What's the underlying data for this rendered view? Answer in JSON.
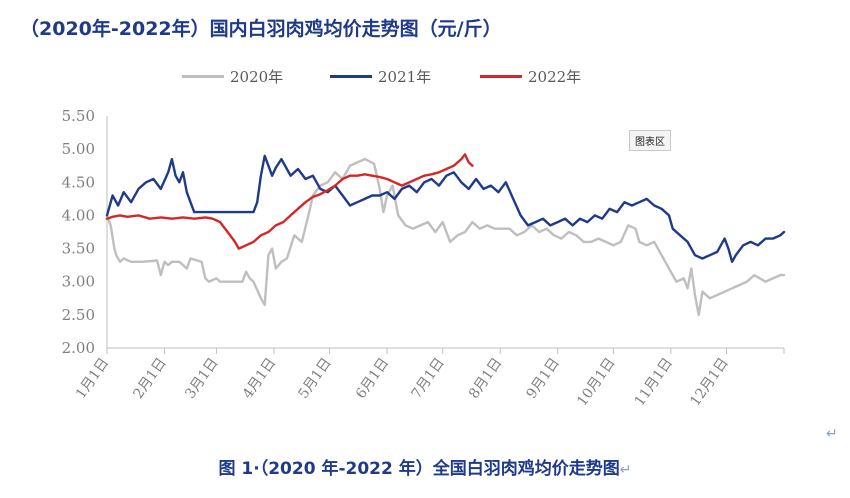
{
  "chart_data": {
    "type": "line",
    "title": "（2020年-2022年）国内白羽肉鸡均价走势图（元/斤）",
    "unit": "元/斤",
    "xlabel": "",
    "ylabel": "",
    "ylim": [
      2.0,
      5.5
    ],
    "yticks": [
      "5.50",
      "5.00",
      "4.50",
      "4.00",
      "3.50",
      "3.00",
      "2.50",
      "2.00"
    ],
    "x_tick_labels": [
      "1月1日",
      "2月1日",
      "3月1日",
      "4月1日",
      "5月1日",
      "6月1日",
      "7月1日",
      "8月1日",
      "9月1日",
      "10月1日",
      "11月1日",
      "12月1日"
    ],
    "x_unit": "day of year",
    "xlim": [
      1,
      366
    ],
    "legend_position": "top",
    "grid": false,
    "series": [
      {
        "name": "2020年",
        "color": "#bfbfbf",
        "points": [
          [
            1,
            4.0
          ],
          [
            3,
            3.85
          ],
          [
            5,
            3.5
          ],
          [
            6,
            3.4
          ],
          [
            8,
            3.3
          ],
          [
            10,
            3.35
          ],
          [
            14,
            3.3
          ],
          [
            20,
            3.3
          ],
          [
            28,
            3.32
          ],
          [
            30,
            3.1
          ],
          [
            32,
            3.3
          ],
          [
            34,
            3.25
          ],
          [
            36,
            3.3
          ],
          [
            40,
            3.3
          ],
          [
            44,
            3.2
          ],
          [
            46,
            3.35
          ],
          [
            52,
            3.3
          ],
          [
            54,
            3.05
          ],
          [
            56,
            3.0
          ],
          [
            60,
            3.05
          ],
          [
            62,
            3.0
          ],
          [
            70,
            3.0
          ],
          [
            74,
            3.0
          ],
          [
            76,
            3.15
          ],
          [
            78,
            3.05
          ],
          [
            80,
            3.0
          ],
          [
            84,
            2.75
          ],
          [
            86,
            2.65
          ],
          [
            88,
            3.4
          ],
          [
            90,
            3.5
          ],
          [
            92,
            3.2
          ],
          [
            95,
            3.3
          ],
          [
            98,
            3.35
          ],
          [
            102,
            3.7
          ],
          [
            106,
            3.6
          ],
          [
            110,
            4.05
          ],
          [
            112,
            4.3
          ],
          [
            116,
            4.45
          ],
          [
            120,
            4.5
          ],
          [
            124,
            4.65
          ],
          [
            128,
            4.55
          ],
          [
            132,
            4.75
          ],
          [
            136,
            4.8
          ],
          [
            140,
            4.85
          ],
          [
            145,
            4.78
          ],
          [
            148,
            4.4
          ],
          [
            150,
            4.05
          ],
          [
            152,
            4.3
          ],
          [
            155,
            4.45
          ],
          [
            158,
            4.0
          ],
          [
            162,
            3.85
          ],
          [
            166,
            3.8
          ],
          [
            170,
            3.85
          ],
          [
            174,
            3.9
          ],
          [
            178,
            3.75
          ],
          [
            182,
            3.9
          ],
          [
            186,
            3.6
          ],
          [
            190,
            3.7
          ],
          [
            194,
            3.75
          ],
          [
            198,
            3.9
          ],
          [
            202,
            3.8
          ],
          [
            206,
            3.85
          ],
          [
            210,
            3.8
          ],
          [
            214,
            3.8
          ],
          [
            218,
            3.8
          ],
          [
            222,
            3.7
          ],
          [
            226,
            3.75
          ],
          [
            230,
            3.85
          ],
          [
            234,
            3.75
          ],
          [
            238,
            3.8
          ],
          [
            242,
            3.7
          ],
          [
            246,
            3.65
          ],
          [
            250,
            3.75
          ],
          [
            254,
            3.7
          ],
          [
            258,
            3.6
          ],
          [
            262,
            3.6
          ],
          [
            266,
            3.65
          ],
          [
            270,
            3.6
          ],
          [
            274,
            3.55
          ],
          [
            278,
            3.6
          ],
          [
            282,
            3.85
          ],
          [
            286,
            3.8
          ],
          [
            288,
            3.6
          ],
          [
            292,
            3.55
          ],
          [
            296,
            3.6
          ],
          [
            300,
            3.4
          ],
          [
            304,
            3.2
          ],
          [
            308,
            3.0
          ],
          [
            312,
            3.05
          ],
          [
            314,
            2.9
          ],
          [
            316,
            3.2
          ],
          [
            318,
            2.8
          ],
          [
            320,
            2.5
          ],
          [
            322,
            2.85
          ],
          [
            326,
            2.75
          ],
          [
            330,
            2.8
          ],
          [
            334,
            2.85
          ],
          [
            338,
            2.9
          ],
          [
            342,
            2.95
          ],
          [
            346,
            3.0
          ],
          [
            350,
            3.1
          ],
          [
            356,
            3.0
          ],
          [
            360,
            3.05
          ],
          [
            364,
            3.1
          ],
          [
            366,
            3.1
          ]
        ]
      },
      {
        "name": "2021年",
        "color": "#1f3a8a",
        "points": [
          [
            1,
            4.0
          ],
          [
            4,
            4.3
          ],
          [
            7,
            4.15
          ],
          [
            10,
            4.35
          ],
          [
            14,
            4.2
          ],
          [
            18,
            4.4
          ],
          [
            22,
            4.5
          ],
          [
            26,
            4.55
          ],
          [
            30,
            4.4
          ],
          [
            34,
            4.65
          ],
          [
            36,
            4.85
          ],
          [
            38,
            4.6
          ],
          [
            40,
            4.5
          ],
          [
            42,
            4.65
          ],
          [
            44,
            4.35
          ],
          [
            46,
            4.2
          ],
          [
            48,
            4.05
          ],
          [
            52,
            4.05
          ],
          [
            60,
            4.05
          ],
          [
            70,
            4.05
          ],
          [
            75,
            4.05
          ],
          [
            80,
            4.05
          ],
          [
            82,
            4.2
          ],
          [
            84,
            4.6
          ],
          [
            86,
            4.9
          ],
          [
            88,
            4.75
          ],
          [
            90,
            4.6
          ],
          [
            92,
            4.72
          ],
          [
            95,
            4.85
          ],
          [
            98,
            4.7
          ],
          [
            100,
            4.6
          ],
          [
            104,
            4.7
          ],
          [
            108,
            4.55
          ],
          [
            112,
            4.6
          ],
          [
            116,
            4.4
          ],
          [
            120,
            4.35
          ],
          [
            124,
            4.45
          ],
          [
            128,
            4.3
          ],
          [
            132,
            4.15
          ],
          [
            136,
            4.2
          ],
          [
            140,
            4.25
          ],
          [
            144,
            4.3
          ],
          [
            148,
            4.3
          ],
          [
            152,
            4.35
          ],
          [
            156,
            4.25
          ],
          [
            160,
            4.4
          ],
          [
            164,
            4.45
          ],
          [
            168,
            4.35
          ],
          [
            172,
            4.5
          ],
          [
            176,
            4.55
          ],
          [
            180,
            4.45
          ],
          [
            184,
            4.6
          ],
          [
            188,
            4.65
          ],
          [
            192,
            4.5
          ],
          [
            196,
            4.4
          ],
          [
            200,
            4.55
          ],
          [
            204,
            4.4
          ],
          [
            208,
            4.45
          ],
          [
            212,
            4.35
          ],
          [
            216,
            4.5
          ],
          [
            220,
            4.25
          ],
          [
            224,
            4.0
          ],
          [
            228,
            3.85
          ],
          [
            232,
            3.9
          ],
          [
            236,
            3.95
          ],
          [
            240,
            3.85
          ],
          [
            244,
            3.9
          ],
          [
            248,
            3.95
          ],
          [
            252,
            3.85
          ],
          [
            256,
            3.95
          ],
          [
            260,
            3.9
          ],
          [
            264,
            4.0
          ],
          [
            268,
            3.95
          ],
          [
            272,
            4.1
          ],
          [
            276,
            4.05
          ],
          [
            280,
            4.2
          ],
          [
            284,
            4.15
          ],
          [
            288,
            4.2
          ],
          [
            292,
            4.25
          ],
          [
            296,
            4.15
          ],
          [
            300,
            4.1
          ],
          [
            304,
            4.0
          ],
          [
            306,
            3.8
          ],
          [
            310,
            3.7
          ],
          [
            314,
            3.6
          ],
          [
            318,
            3.4
          ],
          [
            322,
            3.35
          ],
          [
            326,
            3.4
          ],
          [
            330,
            3.45
          ],
          [
            334,
            3.65
          ],
          [
            336,
            3.5
          ],
          [
            338,
            3.3
          ],
          [
            340,
            3.4
          ],
          [
            344,
            3.55
          ],
          [
            348,
            3.6
          ],
          [
            352,
            3.55
          ],
          [
            356,
            3.65
          ],
          [
            360,
            3.65
          ],
          [
            364,
            3.7
          ],
          [
            366,
            3.75
          ]
        ]
      },
      {
        "name": "2022年",
        "color": "#d62728",
        "points": [
          [
            1,
            3.95
          ],
          [
            4,
            3.98
          ],
          [
            8,
            4.0
          ],
          [
            12,
            3.98
          ],
          [
            18,
            4.0
          ],
          [
            24,
            3.95
          ],
          [
            30,
            3.97
          ],
          [
            36,
            3.95
          ],
          [
            42,
            3.97
          ],
          [
            48,
            3.95
          ],
          [
            54,
            3.97
          ],
          [
            58,
            3.95
          ],
          [
            62,
            3.9
          ],
          [
            66,
            3.75
          ],
          [
            70,
            3.6
          ],
          [
            72,
            3.5
          ],
          [
            76,
            3.55
          ],
          [
            80,
            3.6
          ],
          [
            84,
            3.7
          ],
          [
            88,
            3.75
          ],
          [
            92,
            3.85
          ],
          [
            96,
            3.9
          ],
          [
            100,
            4.0
          ],
          [
            104,
            4.1
          ],
          [
            108,
            4.2
          ],
          [
            112,
            4.28
          ],
          [
            116,
            4.32
          ],
          [
            120,
            4.38
          ],
          [
            124,
            4.45
          ],
          [
            128,
            4.55
          ],
          [
            132,
            4.6
          ],
          [
            136,
            4.6
          ],
          [
            140,
            4.62
          ],
          [
            144,
            4.6
          ],
          [
            148,
            4.58
          ],
          [
            152,
            4.55
          ],
          [
            156,
            4.5
          ],
          [
            160,
            4.45
          ],
          [
            164,
            4.5
          ],
          [
            168,
            4.55
          ],
          [
            172,
            4.6
          ],
          [
            176,
            4.62
          ],
          [
            180,
            4.65
          ],
          [
            184,
            4.7
          ],
          [
            188,
            4.75
          ],
          [
            192,
            4.85
          ],
          [
            194,
            4.92
          ],
          [
            196,
            4.8
          ],
          [
            198,
            4.75
          ]
        ]
      }
    ]
  },
  "chart_area_tag": "图表区",
  "caption": "图 1·（2020 年-2022 年）全国白羽肉鸡均价走势图",
  "para_mark": "↵",
  "caption_mark": "↵"
}
